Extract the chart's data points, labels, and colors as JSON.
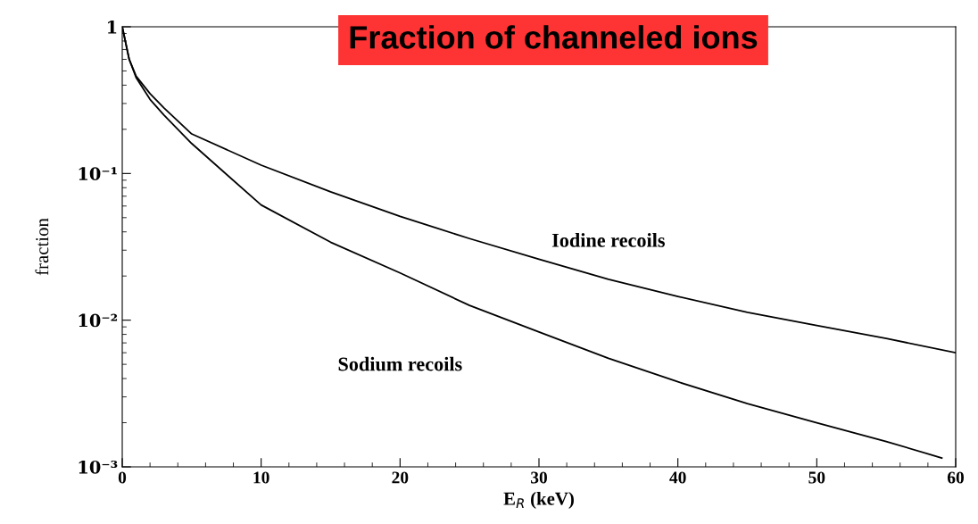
{
  "chart_data": {
    "type": "line",
    "title": "Fraction of channeled ions",
    "xlabel": "E$_{R}$ (keV)",
    "ylabel": "fraction",
    "log": "y",
    "xlim": [
      0,
      60
    ],
    "xticks": [
      0,
      10,
      20,
      30,
      40,
      50,
      60
    ],
    "ylim": [
      0.001,
      1
    ],
    "yticks": [
      {
        "value": 0.001,
        "label": "10⁻³"
      },
      {
        "value": 0.01,
        "label": "10⁻²"
      },
      {
        "value": 0.1,
        "label": "10⁻¹"
      },
      1
    ],
    "grid": false,
    "legend": false,
    "marker": "none",
    "line_style": "solid",
    "series": [
      {
        "name": "Iodine recoils",
        "color": "#000000",
        "x": [
          0,
          0.5,
          1,
          2,
          3,
          5,
          10,
          15,
          20,
          25,
          30,
          35,
          40,
          45,
          50,
          55,
          60
        ],
        "values": [
          1,
          0.6,
          0.46,
          0.35,
          0.28,
          0.186,
          0.114,
          0.075,
          0.051,
          0.036,
          0.026,
          0.019,
          0.0145,
          0.0113,
          0.0092,
          0.0075,
          0.006
        ]
      },
      {
        "name": "Sodium recoils",
        "color": "#000000",
        "x": [
          0,
          0.5,
          1,
          2,
          3,
          5,
          10,
          15,
          20,
          25,
          30,
          35,
          40,
          45,
          50,
          55,
          59
        ],
        "values": [
          1,
          0.6,
          0.45,
          0.32,
          0.25,
          0.16,
          0.061,
          0.034,
          0.021,
          0.0126,
          0.0083,
          0.0055,
          0.0038,
          0.0027,
          0.002,
          0.00149,
          0.00115
        ]
      }
    ]
  }
}
